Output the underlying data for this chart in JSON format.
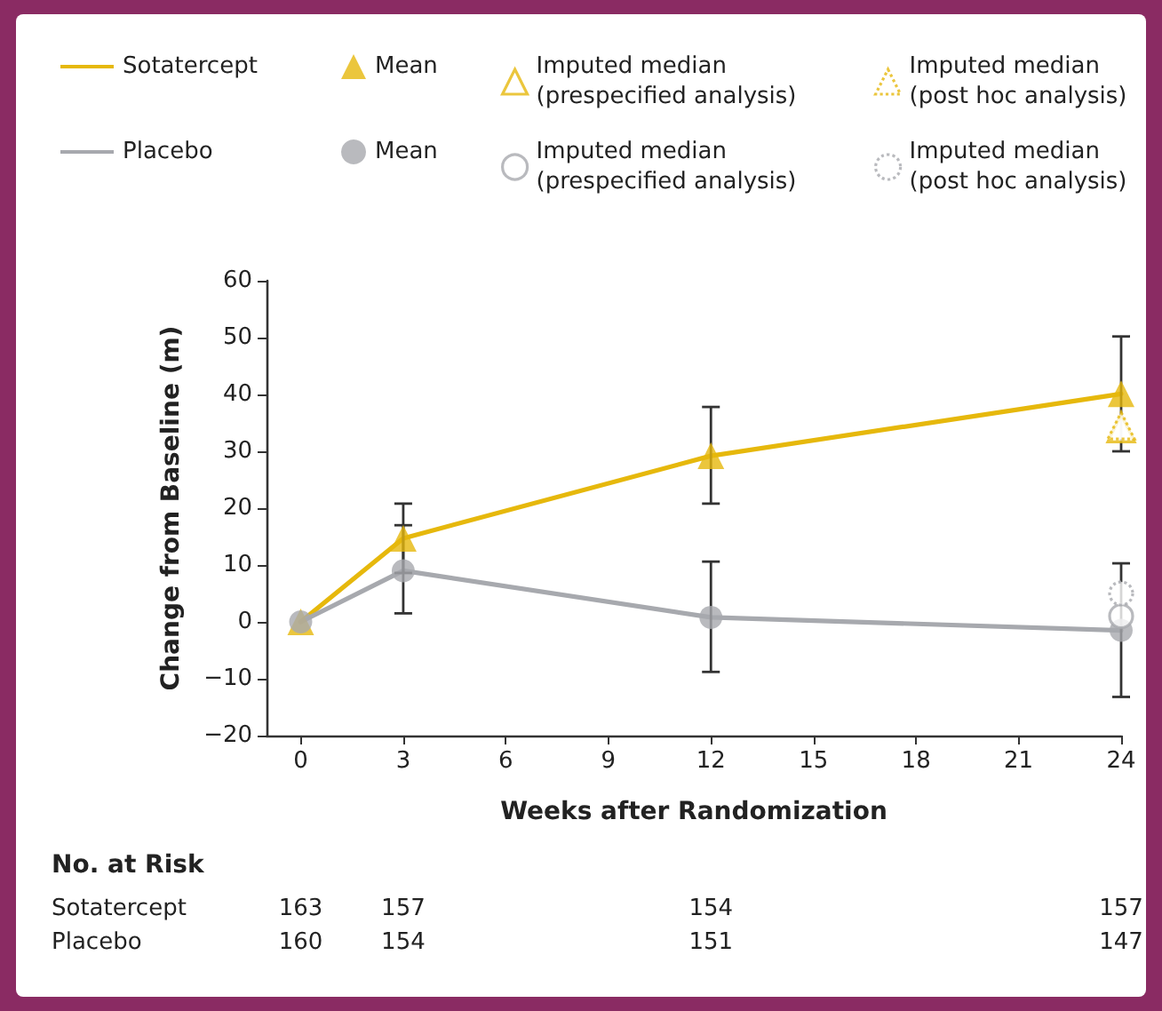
{
  "chart_data": {
    "type": "line",
    "xlabel": "Weeks after Randomization",
    "ylabel": "Change from Baseline (m)",
    "xlim": [
      -1,
      24
    ],
    "xticks": [
      0,
      3,
      6,
      9,
      12,
      15,
      18,
      21,
      24
    ],
    "ylim": [
      -20,
      60
    ],
    "yticks": [
      -20,
      -10,
      0,
      10,
      20,
      30,
      40,
      50,
      60
    ],
    "grid": false,
    "legend": "top",
    "series": [
      {
        "name": "Sotatercept",
        "color": "#e6b80c",
        "marker": "none",
        "x": [
          0,
          3,
          12,
          24
        ],
        "values": [
          0,
          14.7,
          29.2,
          40.1
        ]
      },
      {
        "name": "Mean",
        "type": "scatter",
        "color": "#e6b80c",
        "marker": "triangle",
        "x": [
          0,
          3,
          12,
          24
        ],
        "values": [
          0,
          14.7,
          29.2,
          40.1
        ],
        "errors": [
          null,
          [
            8.6,
            20.8
          ],
          [
            20.8,
            37.8
          ],
          [
            30,
            50.2
          ]
        ]
      },
      {
        "name": "Imputed median (prespecified analysis)",
        "type": "scatter",
        "color": "#e6b80c",
        "marker": "triangle",
        "line_style": "solid",
        "x": [
          24
        ],
        "values": [
          34
        ]
      },
      {
        "name": "Imputed median (post hoc analysis)",
        "type": "scatter",
        "color": "#e6b80c",
        "marker": "triangle",
        "line_style": "dotted",
        "x": [
          24
        ],
        "values": [
          34.5
        ]
      },
      {
        "name": "Placebo",
        "color": "#a7a9ae",
        "marker": "none",
        "x": [
          0,
          3,
          12,
          24
        ],
        "values": [
          0,
          9,
          0.8,
          -1.5
        ]
      },
      {
        "name": "Mean",
        "type": "scatter",
        "color": "#a7a9ae",
        "marker": "circle",
        "x": [
          0,
          3,
          12,
          24
        ],
        "values": [
          0,
          9,
          0.8,
          -1.5
        ],
        "errors": [
          null,
          [
            1.5,
            17
          ],
          [
            -8.8,
            10.6
          ],
          [
            -13.2,
            10.3
          ]
        ]
      },
      {
        "name": "Imputed median (prespecified analysis)",
        "type": "scatter",
        "color": "#a7a9ae",
        "marker": "circle",
        "line_style": "solid",
        "x": [
          24
        ],
        "values": [
          1
        ]
      },
      {
        "name": "Imputed median (post hoc analysis)",
        "type": "scatter",
        "color": "#a7a9ae",
        "marker": "circle",
        "line_style": "dotted",
        "x": [
          24
        ],
        "values": [
          5
        ]
      }
    ],
    "annotations": [
      "No. at Risk",
      "Sotatercept",
      "163",
      "157",
      "154",
      "157",
      "Placebo",
      "160",
      "154",
      "151",
      "147"
    ]
  }
}
